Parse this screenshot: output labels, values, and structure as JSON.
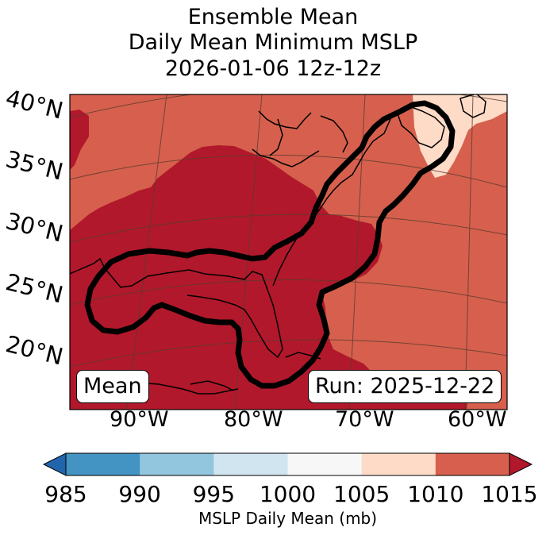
{
  "title": {
    "line1": "Ensemble Mean",
    "line2": "Daily Mean Minimum MSLP",
    "line3": "2026-01-06 12z-12z"
  },
  "latitude_labels": [
    "40°N",
    "35°N",
    "30°N",
    "25°N",
    "20°N"
  ],
  "longitude_labels": [
    "90°W",
    "80°W",
    "70°W",
    "60°W"
  ],
  "mean_box": "Mean",
  "run_box": "Run: 2025-12-22",
  "colorbar": {
    "label": "MSLP Daily Mean (mb)",
    "ticks": [
      "985",
      "990",
      "995",
      "1000",
      "1005",
      "1010",
      "1015"
    ],
    "colors": [
      "#2166ac",
      "#4393c3",
      "#92c5de",
      "#d1e5f0",
      "#f7f7f7",
      "#fddbc7",
      "#d6604d",
      "#b2182b"
    ]
  },
  "fill_colors": {
    "deep": "#b2182b",
    "mid": "#d6604d",
    "light": "#fddbc7",
    "contour": "#000000",
    "coast": "#000000",
    "grid": "#5a3a30"
  }
}
